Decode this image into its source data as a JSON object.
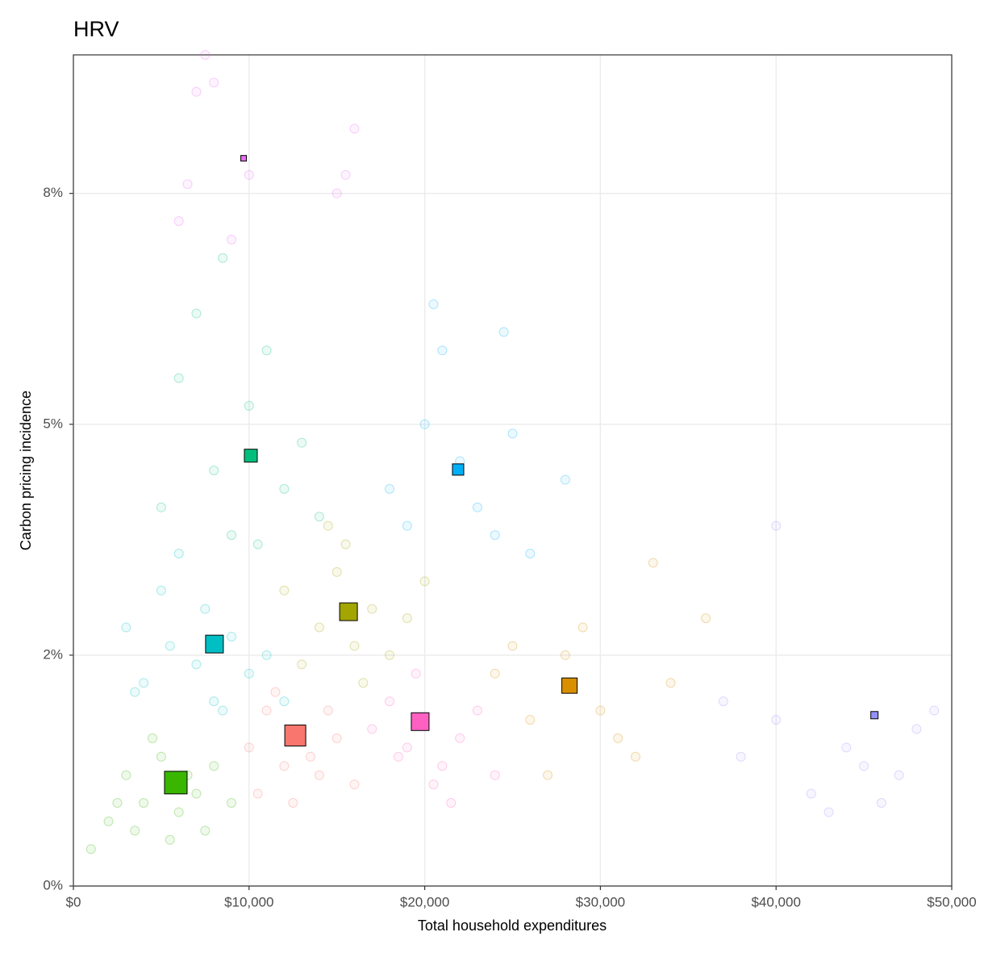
{
  "chart_data": {
    "type": "scatter",
    "title": "HRV",
    "x_label": "Total household expenditures",
    "y_label": "Carbon pricing incidence",
    "xlim": [
      0,
      50000
    ],
    "ylim": [
      0,
      9.0
    ],
    "xticks": [
      {
        "value": 0,
        "label": "$0"
      },
      {
        "value": 10000,
        "label": "$10,000"
      },
      {
        "value": 20000,
        "label": "$20,000"
      },
      {
        "value": 30000,
        "label": "$30,000"
      },
      {
        "value": 40000,
        "label": "$40,000"
      },
      {
        "value": 50000,
        "label": "$50,000"
      }
    ],
    "yticks": [
      {
        "value": 0,
        "label": "0%"
      },
      {
        "value": 2.5,
        "label": "2%"
      },
      {
        "value": 5,
        "label": "5%"
      },
      {
        "value": 7.5,
        "label": "8%"
      }
    ],
    "grid": true,
    "series": [
      {
        "color": "#39B600",
        "x": [
          2000,
          3000,
          4000,
          5000,
          6000,
          7000,
          8000,
          3500,
          5500,
          9000,
          4500,
          6500,
          2500,
          7500,
          1000
        ],
        "values": [
          0.7,
          1.2,
          0.9,
          1.4,
          0.8,
          1.0,
          1.3,
          0.6,
          0.5,
          0.9,
          1.6,
          1.2,
          0.9,
          0.6,
          0.4
        ],
        "centroid": {
          "x": 5830,
          "y": 1.12,
          "size": 28
        }
      },
      {
        "color": "#00BFC4",
        "x": [
          3000,
          5000,
          7000,
          8000,
          9000,
          6000,
          4000,
          10000,
          11000,
          7500,
          8500,
          12000,
          5500,
          3500
        ],
        "values": [
          2.8,
          3.2,
          2.4,
          2.0,
          2.7,
          3.6,
          2.2,
          2.3,
          2.5,
          3.0,
          1.9,
          2.0,
          2.6,
          2.1
        ],
        "centroid": {
          "x": 8030,
          "y": 2.62,
          "size": 22
        }
      },
      {
        "color": "#00BF7D",
        "x": [
          6000,
          8000,
          10000,
          12000,
          9000,
          7000,
          11000,
          13000,
          14000,
          5000,
          8500,
          10500
        ],
        "values": [
          5.5,
          4.5,
          5.2,
          4.3,
          3.8,
          6.2,
          5.8,
          4.8,
          4.0,
          4.1,
          6.8,
          3.7
        ],
        "centroid": {
          "x": 10100,
          "y": 4.66,
          "size": 16
        }
      },
      {
        "color": "#F8766D",
        "x": [
          10000,
          11000,
          12000,
          13000,
          14000,
          15000,
          12500,
          11500,
          13500,
          16000,
          10500,
          14500
        ],
        "values": [
          1.5,
          1.9,
          1.3,
          1.7,
          1.2,
          1.6,
          0.9,
          2.1,
          1.4,
          1.1,
          1.0,
          1.9
        ],
        "centroid": {
          "x": 12630,
          "y": 1.63,
          "size": 26
        }
      },
      {
        "color": "#A3A500",
        "x": [
          12000,
          14000,
          15000,
          16000,
          17000,
          18000,
          13000,
          15500,
          19000,
          20000,
          16500,
          14500
        ],
        "values": [
          3.2,
          2.8,
          3.4,
          2.6,
          3.0,
          2.5,
          2.4,
          3.7,
          2.9,
          3.3,
          2.2,
          3.9
        ],
        "centroid": {
          "x": 15660,
          "y": 2.97,
          "size": 22
        }
      },
      {
        "color": "#FF61C3",
        "x": [
          17000,
          18000,
          19000,
          20000,
          21000,
          22000,
          19500,
          20500,
          18500,
          23000,
          21500,
          24000
        ],
        "values": [
          1.7,
          2.0,
          1.5,
          1.8,
          1.3,
          1.6,
          2.3,
          1.1,
          1.4,
          1.9,
          0.9,
          1.2
        ],
        "centroid": {
          "x": 19740,
          "y": 1.78,
          "size": 22
        }
      },
      {
        "color": "#D89000",
        "x": [
          24000,
          26000,
          28000,
          30000,
          32000,
          27000,
          29000,
          34000,
          25000,
          31000,
          36000,
          33000
        ],
        "values": [
          2.3,
          1.8,
          2.5,
          1.9,
          1.4,
          1.2,
          2.8,
          2.2,
          2.6,
          1.6,
          2.9,
          3.5
        ],
        "centroid": {
          "x": 28240,
          "y": 2.17,
          "size": 19
        }
      },
      {
        "color": "#00B0F6",
        "x": [
          18000,
          20000,
          22000,
          24000,
          21000,
          23000,
          19000,
          25000,
          26000,
          28000,
          20500,
          24500
        ],
        "values": [
          4.3,
          5.0,
          4.6,
          3.8,
          5.8,
          4.1,
          3.9,
          4.9,
          3.6,
          4.4,
          6.3,
          6.0
        ],
        "centroid": {
          "x": 21900,
          "y": 4.51,
          "size": 14
        }
      },
      {
        "color": "#E76BF3",
        "x": [
          7000,
          6500,
          10000,
          15000,
          8000,
          6000,
          16000,
          9000,
          7500,
          15500
        ],
        "values": [
          8.6,
          7.6,
          7.7,
          7.5,
          8.7,
          7.2,
          8.2,
          7.0,
          9.0,
          7.7
        ],
        "centroid": {
          "x": 9690,
          "y": 7.88,
          "size": 7
        }
      },
      {
        "color": "#9590FF",
        "x": [
          38000,
          40000,
          42000,
          44000,
          46000,
          48000,
          45000,
          37000,
          43000,
          49000,
          47000,
          40000
        ],
        "values": [
          1.4,
          1.8,
          1.0,
          1.5,
          0.9,
          1.7,
          1.3,
          2.0,
          0.8,
          1.9,
          1.2,
          3.9
        ],
        "centroid": {
          "x": 45600,
          "y": 1.85,
          "size": 9
        }
      }
    ]
  }
}
